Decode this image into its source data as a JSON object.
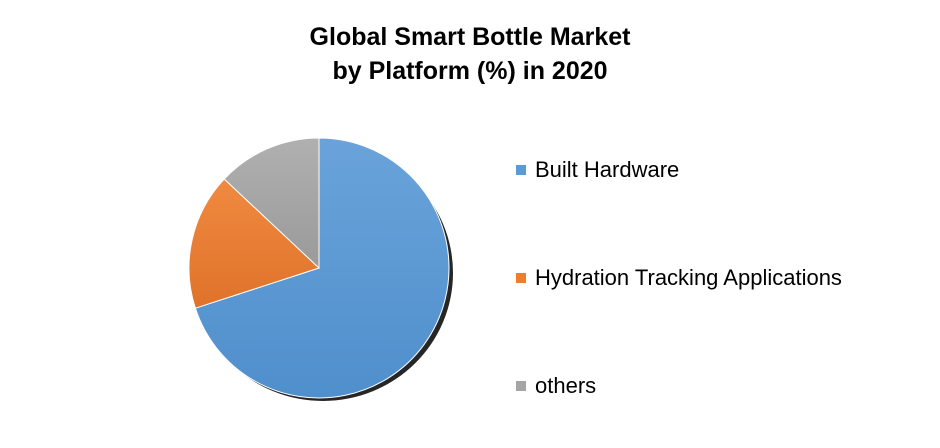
{
  "chart_data": {
    "type": "pie",
    "title_line1": "Global Smart Bottle Market",
    "title_line2": "by Platform (%) in 2020",
    "legend_placement": "right",
    "slices": [
      {
        "label": "Built Hardware",
        "value": 70,
        "color": "#5b9bd5"
      },
      {
        "label": "Hydration Tracking Applications",
        "value": 17,
        "color": "#ed7d31"
      },
      {
        "label": "others",
        "value": 13,
        "color": "#a5a5a5"
      }
    ]
  }
}
